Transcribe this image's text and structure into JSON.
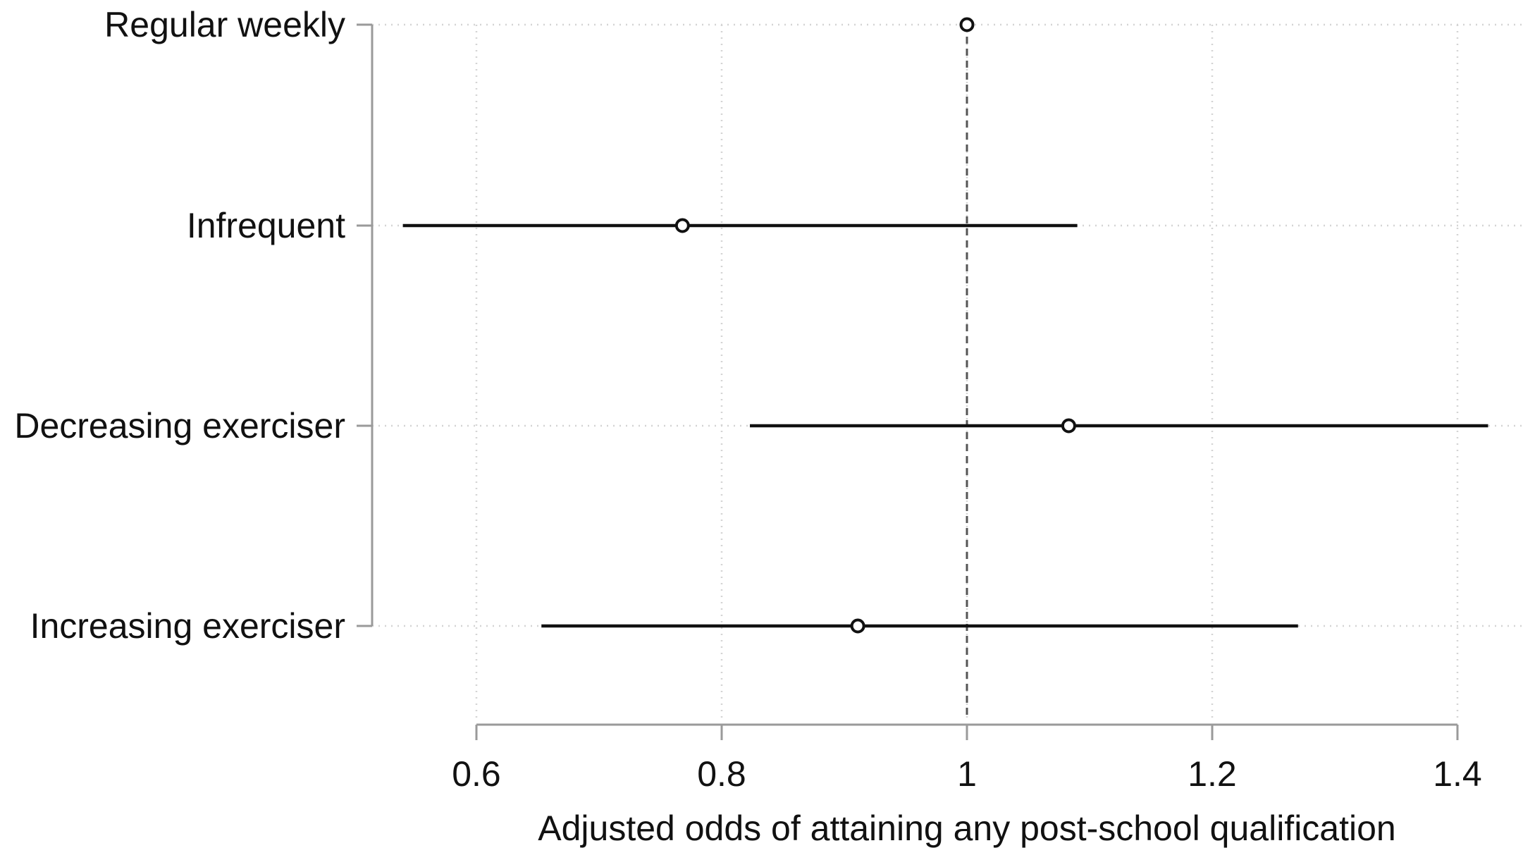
{
  "chart_data": {
    "type": "scatter",
    "subtype": "forest-plot",
    "title": "",
    "xlabel": "Adjusted odds of attaining any post-school qualification",
    "ylabel": "",
    "xlim": [
      0.6,
      1.4
    ],
    "x_ticks": [
      "0.6",
      "0.8",
      "1",
      "1.2",
      "1.4"
    ],
    "x_tick_values": [
      0.6,
      0.8,
      1.0,
      1.2,
      1.4
    ],
    "reference_line": 1.0,
    "grid": true,
    "categories": [
      "Regular weekly",
      "Infrequent",
      "Decreasing exerciser",
      "Increasing exerciser"
    ],
    "estimates": [
      {
        "label": "Regular weekly",
        "estimate": 1.0,
        "lower": null,
        "upper": null
      },
      {
        "label": "Infrequent",
        "estimate": 0.768,
        "lower": 0.54,
        "upper": 1.09
      },
      {
        "label": "Decreasing exerciser",
        "estimate": 1.083,
        "lower": 0.823,
        "upper": 1.425
      },
      {
        "label": "Increasing exerciser",
        "estimate": 0.911,
        "lower": 0.653,
        "upper": 1.27
      }
    ],
    "colors": {
      "marker": "#111111",
      "ci_line": "#111111",
      "axis": "#9a9a9a",
      "grid": "#d4d4d4",
      "reference": "#555555"
    }
  }
}
